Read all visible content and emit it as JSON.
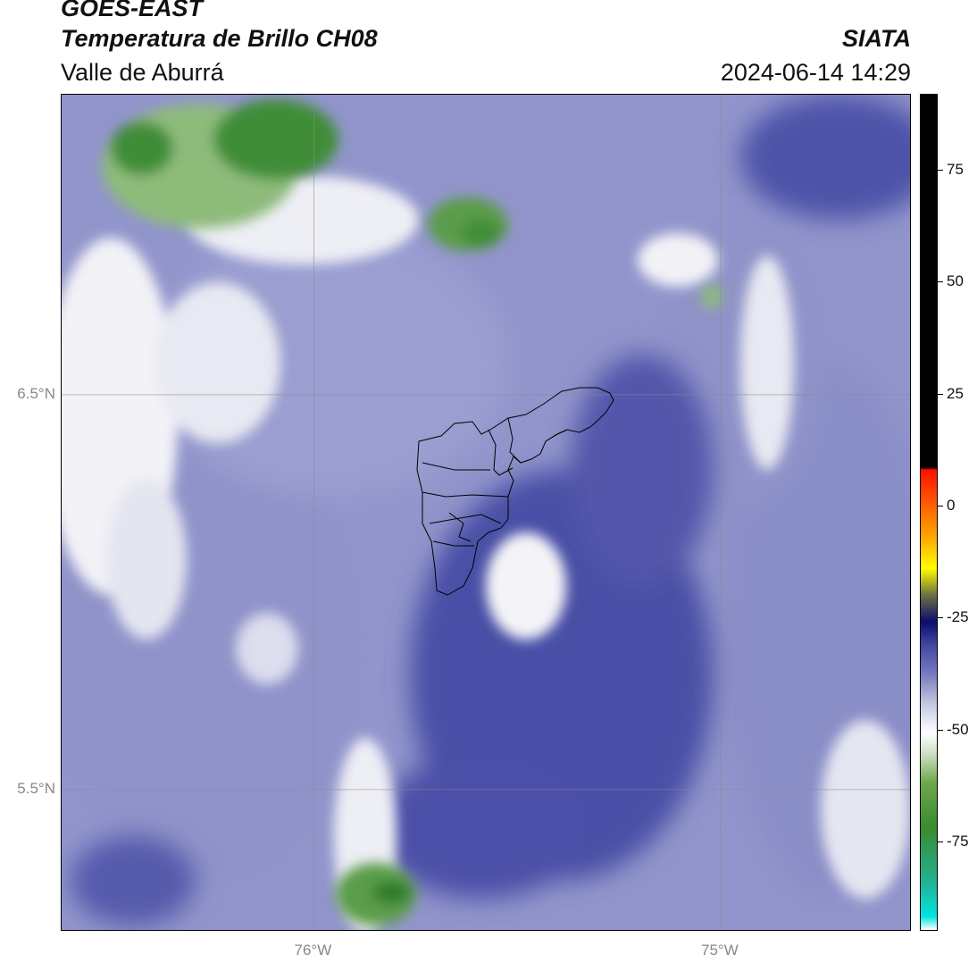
{
  "header": {
    "satellite": "GOES-EAST",
    "product": "Temperatura de Brillo CH08",
    "region": "Valle de Aburrá",
    "brand": "SIATA",
    "timestamp": "2024-06-14 14:29"
  },
  "map": {
    "lon_range": [
      -76.62,
      -74.53
    ],
    "lat_range": [
      5.14,
      7.26
    ],
    "gridlines": true,
    "x_ticks": [
      {
        "lon": -76.0,
        "label": "76°W"
      },
      {
        "lon": -75.0,
        "label": "75°W"
      }
    ],
    "y_ticks": [
      {
        "lat": 6.5,
        "label": "6.5°N"
      },
      {
        "lat": 5.5,
        "label": "5.5°N"
      }
    ],
    "field": "brightness temperature (°C)",
    "background_value": -40
  },
  "colorbar": {
    "range": [
      -95,
      92
    ],
    "ticks": [
      {
        "value": 75,
        "label": "75"
      },
      {
        "value": 50,
        "label": "50"
      },
      {
        "value": 25,
        "label": "25"
      },
      {
        "value": 0,
        "label": "0"
      },
      {
        "value": -25,
        "label": "-25"
      },
      {
        "value": -50,
        "label": "-50"
      },
      {
        "value": -75,
        "label": "-75"
      }
    ],
    "stops": [
      {
        "value": -95,
        "color": "#ffffff"
      },
      {
        "value": -92,
        "color": "#00e6e0"
      },
      {
        "value": -85,
        "color": "#22b49a"
      },
      {
        "value": -72,
        "color": "#3a8a30"
      },
      {
        "value": -62,
        "color": "#6ea84a"
      },
      {
        "value": -56,
        "color": "#c8dcbc"
      },
      {
        "value": -51,
        "color": "#ffffff"
      },
      {
        "value": -44,
        "color": "#c0c4e0"
      },
      {
        "value": -38,
        "color": "#7a7ec0"
      },
      {
        "value": -31,
        "color": "#3f45a0"
      },
      {
        "value": -26,
        "color": "#0c0c70"
      },
      {
        "value": -20,
        "color": "#707040"
      },
      {
        "value": -14,
        "color": "#ffff00"
      },
      {
        "value": -8,
        "color": "#ffb000"
      },
      {
        "value": 0,
        "color": "#ff6000"
      },
      {
        "value": 8,
        "color": "#ff1000"
      },
      {
        "value": 8.5,
        "color": "#000000"
      },
      {
        "value": 92,
        "color": "#000000"
      }
    ]
  }
}
